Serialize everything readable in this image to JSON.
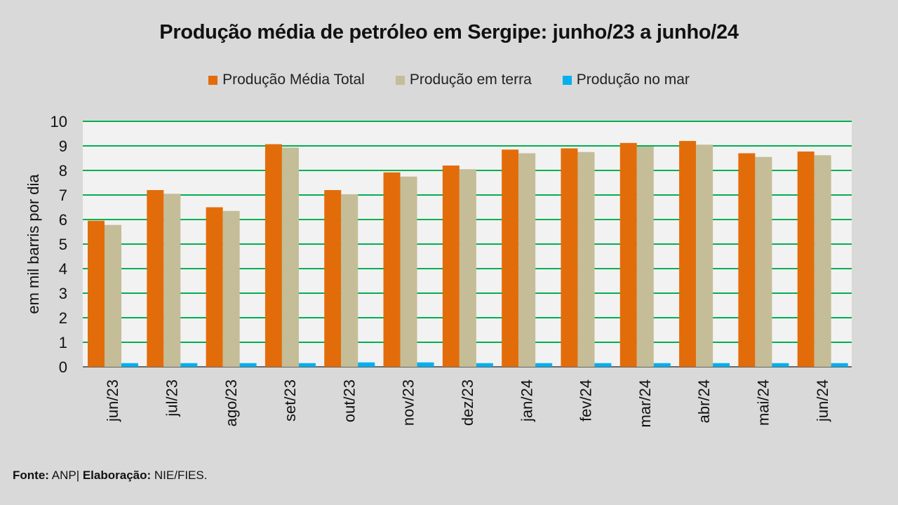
{
  "chart_data": {
    "type": "bar",
    "title": "Produção média de petróleo em Sergipe: junho/23 a junho/24",
    "ylabel": "em mil barris por dia",
    "xlabel": "",
    "ylim": [
      0,
      10
    ],
    "yticks": [
      0,
      1,
      2,
      3,
      4,
      5,
      6,
      7,
      8,
      9,
      10
    ],
    "grid": true,
    "legend_position": "top-center",
    "categories": [
      "jun/23",
      "jul/23",
      "ago/23",
      "set/23",
      "out/23",
      "nov/23",
      "dez/23",
      "jan/24",
      "fev/24",
      "mar/24",
      "abr/24",
      "mai/24",
      "jun/24"
    ],
    "series": [
      {
        "name": "Produção Média Total",
        "color": "#e36c0a",
        "values": [
          5.95,
          7.2,
          6.5,
          9.07,
          7.2,
          7.92,
          8.2,
          8.85,
          8.9,
          9.12,
          9.2,
          8.7,
          8.77
        ]
      },
      {
        "name": "Produção em terra",
        "color": "#c4bd97",
        "values": [
          5.78,
          7.05,
          6.35,
          8.93,
          7.03,
          7.75,
          8.05,
          8.7,
          8.75,
          8.97,
          9.05,
          8.55,
          8.62
        ]
      },
      {
        "name": "Produção no mar",
        "color": "#00b0f0",
        "values": [
          0.15,
          0.15,
          0.15,
          0.15,
          0.18,
          0.18,
          0.15,
          0.15,
          0.15,
          0.15,
          0.15,
          0.15,
          0.15
        ]
      }
    ]
  },
  "footer": {
    "source_label": "Fonte:",
    "source_value": "ANP|",
    "credit_label": "Elaboração:",
    "credit_value": "NIE/FIES."
  },
  "colors": {
    "background": "#d9d9d9",
    "plot_background": "#f2f2f2",
    "gridline": "#00b050"
  }
}
